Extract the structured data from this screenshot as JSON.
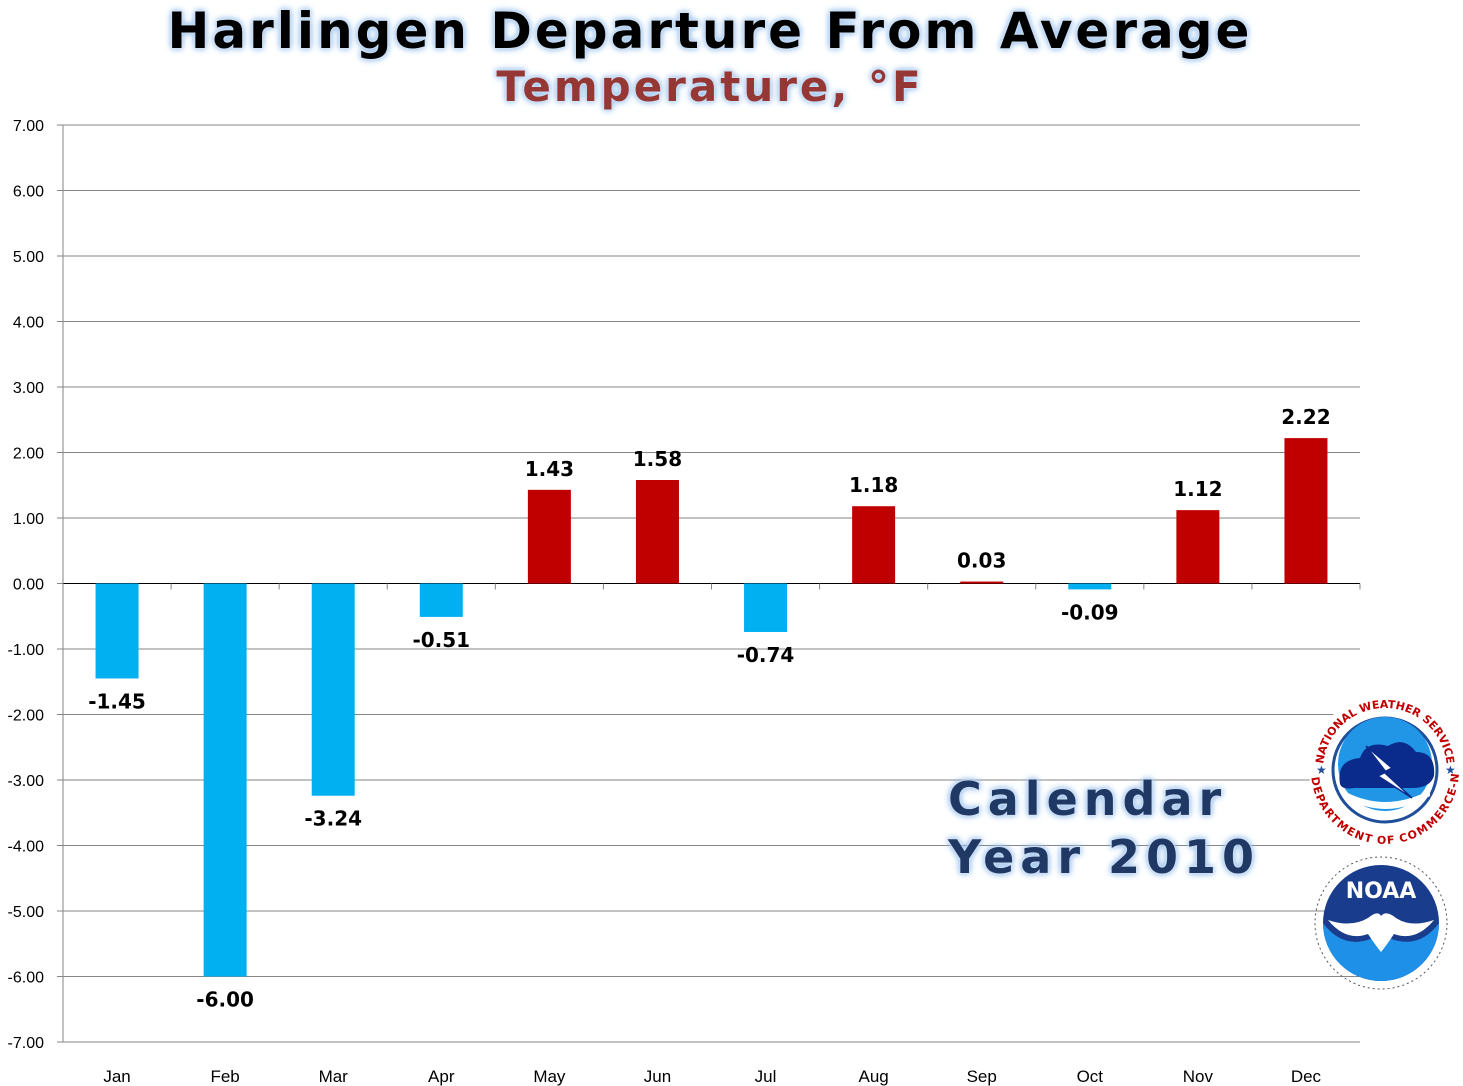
{
  "chart_data": {
    "type": "bar",
    "title": "Harlingen Departure From Average",
    "subtitle": "Temperature, °F",
    "xlabel": "",
    "ylabel": "",
    "categories": [
      "Jan",
      "Feb",
      "Mar",
      "Apr",
      "May",
      "Jun",
      "Jul",
      "Aug",
      "Sep",
      "Oct",
      "Nov",
      "Dec"
    ],
    "values": [
      -1.45,
      -6.0,
      -3.24,
      -0.51,
      1.43,
      1.58,
      -0.74,
      1.18,
      0.03,
      -0.09,
      1.12,
      2.22
    ],
    "data_labels": [
      "-1.45",
      "-6.00",
      "-3.24",
      "-0.51",
      "1.43",
      "1.58",
      "-0.74",
      "1.18",
      "0.03",
      "-0.09",
      "1.12",
      "2.22"
    ],
    "ylim": [
      -7,
      7
    ],
    "yticks": [
      "7.00",
      "6.00",
      "5.00",
      "4.00",
      "3.00",
      "2.00",
      "1.00",
      "0.00",
      "-1.00",
      "-2.00",
      "-3.00",
      "-4.00",
      "-5.00",
      "-6.00",
      "-7.00"
    ],
    "grid": true,
    "legend": "none",
    "colors": {
      "positive": "#c00000",
      "negative": "#00b0f0",
      "gridline": "#868686"
    }
  },
  "caption": {
    "line1": "Calendar",
    "line2": "Year 2010"
  },
  "logos": {
    "nws": {
      "icon": "nws-logo",
      "top_text": "NATIONAL WEATHER SERVICE",
      "bottom_text": "U.S. DEPARTMENT OF COMMERCE-NOAA"
    },
    "noaa": {
      "icon": "noaa-logo",
      "text": "NOAA"
    }
  }
}
